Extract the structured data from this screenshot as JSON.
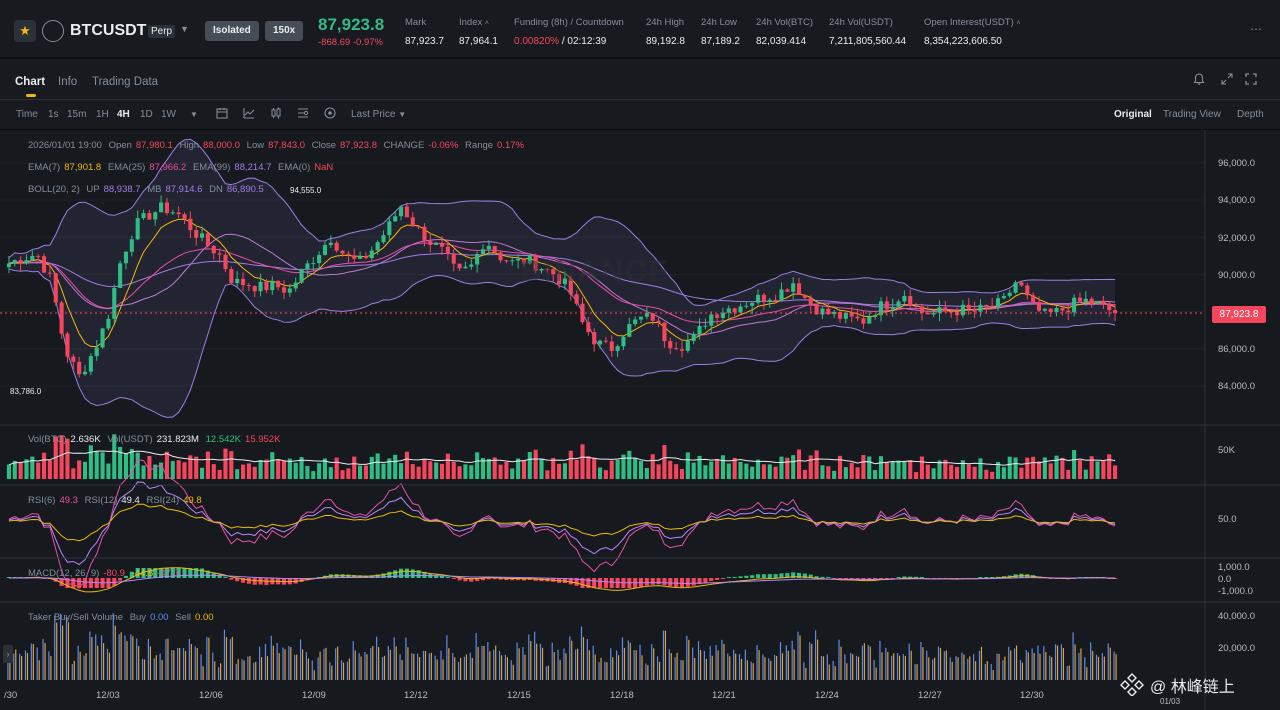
{
  "header": {
    "symbol": "BTCUSDT",
    "contract_type": "Perp",
    "margin_mode": "Isolated",
    "leverage": "150x",
    "last_price": "87,923.8",
    "change": "-868.69",
    "change_pct": "-0.97%",
    "stats": [
      {
        "label": "Mark",
        "value": "87,923.7"
      },
      {
        "label": "Index",
        "value": "87,964.1"
      },
      {
        "label": "Funding (8h) / Countdown",
        "value": "0.00820%",
        "value2": "/ 02:12:39"
      },
      {
        "label": "24h High",
        "value": "89,192.8"
      },
      {
        "label": "24h Low",
        "value": "87,189.2"
      },
      {
        "label": "24h Vol(BTC)",
        "value": "82,039.414"
      },
      {
        "label": "24h Vol(USDT)",
        "value": "7,211,805,560.44"
      },
      {
        "label": "Open Interest(USDT)",
        "value": "8,354,223,606.50"
      }
    ]
  },
  "tabs": [
    "Chart",
    "Info",
    "Trading Data"
  ],
  "timeframes": [
    "Time",
    "1s",
    "15m",
    "1H",
    "4H",
    "1D",
    "1W"
  ],
  "active_timeframe": "4H",
  "price_source": "Last Price",
  "views": [
    "Original",
    "Trading View",
    "Depth"
  ],
  "active_view": "Original",
  "legend": {
    "ohlc": {
      "date": "2026/01/01 19:00",
      "open_label": "Open",
      "open": "87,980.1",
      "high_label": "High",
      "high": "88,000.0",
      "low_label": "Low",
      "low": "87,843.0",
      "close_label": "Close",
      "close": "87,923.8",
      "change_label": "CHANGE",
      "change": "-0.06%",
      "range_label": "Range",
      "range": "0.17%"
    },
    "ema": {
      "l7": "EMA(7)",
      "v7": "87,901.8",
      "l25": "EMA(25)",
      "v25": "87,966.2",
      "l99": "EMA(99)",
      "v99": "88,214.7",
      "l0": "EMA(0)",
      "v0": "NaN"
    },
    "boll": {
      "label": "BOLL(20, 2)",
      "up_label": "UP",
      "up": "88,938.7",
      "mb_label": "MB",
      "mb": "87,914.6",
      "dn_label": "DN",
      "dn": "86,890.5"
    },
    "vol": {
      "label": "Vol(BTC)",
      "v1": "2.636K",
      "label2": "Vol(USDT)",
      "v2": "231.823M",
      "v3": "12.542K",
      "v4": "15.952K"
    },
    "rsi": {
      "l6": "RSI(6)",
      "v6": "49.3",
      "l12": "RSI(12)",
      "v12": "49.4",
      "l24": "RSI(24)",
      "v24": "49.8"
    },
    "macd": {
      "label": "MACD(12, 26, 9)",
      "v1": "-80.9",
      "v2": "-44.8",
      "v3": "-47.3"
    },
    "taker": {
      "label": "Taker Buy/Sell Volume",
      "buy_label": "Buy",
      "buy": "0.00",
      "sell_label": "Sell",
      "sell": "0.00"
    }
  },
  "price_axis": [
    "96,000.0",
    "94,000.0",
    "92,000.0",
    "90,000.0",
    "88,000.0",
    "86,000.0",
    "84,000.0"
  ],
  "current_price_tag": "87,923.8",
  "high_marker": "94,555.0",
  "low_marker": "83,786.0",
  "vol_axis": [
    "50K"
  ],
  "rsi_axis": [
    "50.0"
  ],
  "macd_axis": [
    "1,000.0",
    "0.0",
    "-1,000.0"
  ],
  "taker_axis": [
    "40,000.0",
    "20,000.0"
  ],
  "date_axis": [
    "/30",
    "12/03",
    "12/06",
    "12/09",
    "12/12",
    "12/15",
    "12/18",
    "12/21",
    "12/24",
    "12/27",
    "12/30",
    "01/03"
  ],
  "watermark": "@ 林峰链上",
  "background_logo": "BINANCE",
  "colors": {
    "up": "#2ebd85",
    "down": "#f6465d",
    "ema7": "#f0b90b",
    "ema25": "#e84fa6",
    "ema99": "#a47ce6",
    "boll": "#9b7ee6",
    "accent": "#f0b90b"
  },
  "chart_data": {
    "type": "candlestick",
    "timeframe": "4H",
    "date_range": [
      "11/30",
      "01/01"
    ],
    "price_range": [
      83000,
      97000
    ],
    "closes": [
      90600,
      90900,
      91100,
      89700,
      86000,
      84500,
      85800,
      87500,
      90800,
      92600,
      93200,
      93600,
      93300,
      92500,
      91700,
      91100,
      89600,
      89500,
      89300,
      89400,
      89100,
      90200,
      91100,
      92000,
      91000,
      90600,
      91400,
      92400,
      93700,
      92600,
      91800,
      91200,
      90000,
      90400,
      91900,
      91000,
      90600,
      90800,
      90400,
      90000,
      89200,
      87300,
      86300,
      86000,
      87000,
      87600,
      87700,
      86400,
      86200,
      86600,
      87800,
      88100,
      88300,
      88600,
      88800,
      89000,
      89600,
      88600,
      88000,
      87800,
      87600,
      87500,
      88200,
      88500,
      89000,
      88000,
      87900,
      88000,
      88100,
      88000,
      88200,
      88500,
      89700,
      88300,
      87800,
      88000,
      88400,
      88600,
      88300,
      87923.8
    ]
  }
}
